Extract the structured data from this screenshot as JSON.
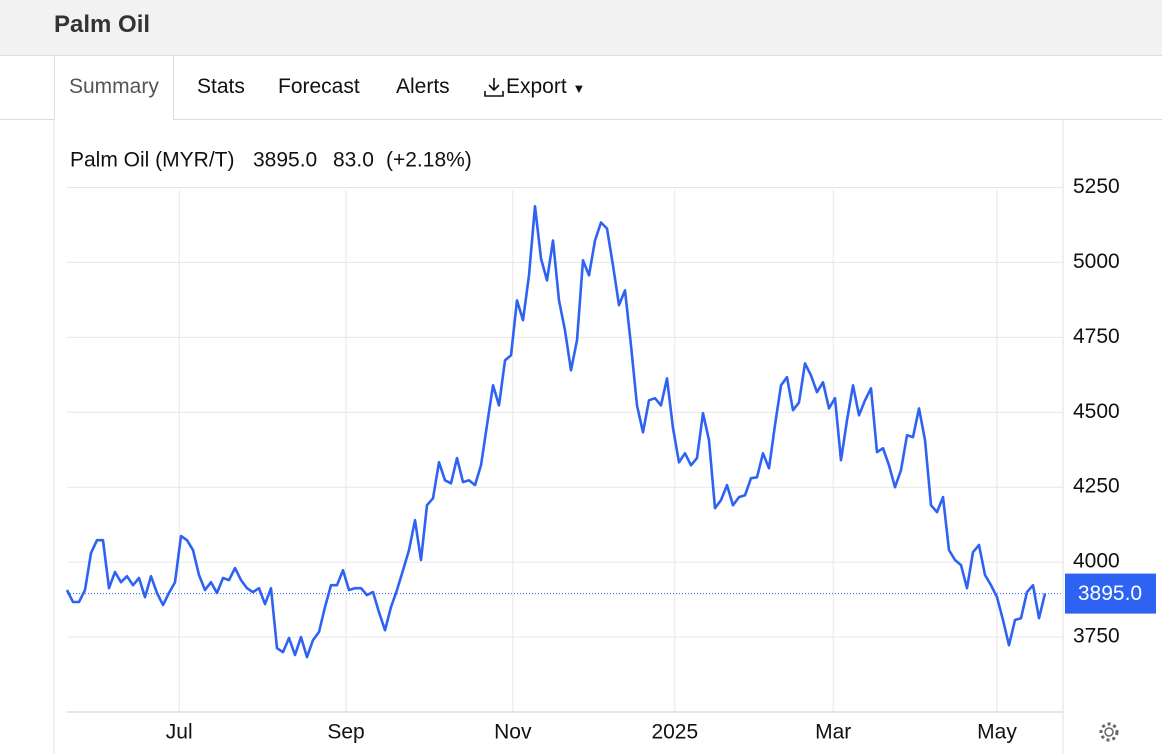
{
  "header": {
    "title": "Palm Oil"
  },
  "tabs": [
    "Summary",
    "Stats",
    "Forecast",
    "Alerts",
    "Export"
  ],
  "chart_data": {
    "type": "line",
    "price": "3895.0",
    "change": "83.0",
    "change_pct": "(+2.18%)",
    "change_color": "#22b422",
    "series": [
      {
        "name": "Palm Oil (MYR/T)",
        "color": "#2e62f2",
        "values": [
          3907,
          3867,
          3867,
          3907,
          4030,
          4073,
          4073,
          3913,
          3967,
          3933,
          3953,
          3923,
          3947,
          3883,
          3953,
          3897,
          3857,
          3897,
          3933,
          4087,
          4073,
          4040,
          3957,
          3907,
          3933,
          3897,
          3947,
          3940,
          3980,
          3940,
          3913,
          3900,
          3913,
          3860,
          3913,
          3713,
          3700,
          3747,
          3690,
          3750,
          3683,
          3740,
          3767,
          3850,
          3923,
          3923,
          3973,
          3907,
          3913,
          3913,
          3890,
          3900,
          3833,
          3773,
          3850,
          3907,
          3973,
          4040,
          4140,
          4007,
          4190,
          4213,
          4333,
          4273,
          4263,
          4347,
          4267,
          4273,
          4257,
          4323,
          4457,
          4590,
          4523,
          4673,
          4690,
          4873,
          4807,
          4957,
          5187,
          5013,
          4940,
          5073,
          4873,
          4773,
          4640,
          4740,
          5007,
          4957,
          5073,
          5133,
          5113,
          4990,
          4857,
          4907,
          4723,
          4523,
          4433,
          4540,
          4547,
          4523,
          4613,
          4447,
          4333,
          4363,
          4323,
          4347,
          4497,
          4407,
          4180,
          4207,
          4257,
          4190,
          4217,
          4223,
          4280,
          4283,
          4363,
          4313,
          4457,
          4590,
          4617,
          4507,
          4533,
          4663,
          4623,
          4567,
          4600,
          4513,
          4547,
          4340,
          4473,
          4590,
          4490,
          4540,
          4580,
          4367,
          4380,
          4323,
          4250,
          4307,
          4423,
          4417,
          4513,
          4407,
          4190,
          4167,
          4217,
          4040,
          4007,
          3990,
          3913,
          4033,
          4057,
          3957,
          3923,
          3883,
          3807,
          3723,
          3807,
          3813,
          3900,
          3923,
          3813,
          3895
        ]
      }
    ],
    "ylim": [
      3500,
      5475
    ],
    "yticks": [
      3750,
      4000,
      4250,
      4500,
      4750,
      5000,
      5250
    ],
    "xlim": [
      0,
      166
    ],
    "xticks": [
      {
        "value": 18.7,
        "label": "Jul"
      },
      {
        "value": 46.5,
        "label": "Sep"
      },
      {
        "value": 74.3,
        "label": "Nov"
      },
      {
        "value": 101.3,
        "label": "2025"
      },
      {
        "value": 127.7,
        "label": "Mar"
      },
      {
        "value": 155,
        "label": "May"
      }
    ],
    "grid": true
  }
}
